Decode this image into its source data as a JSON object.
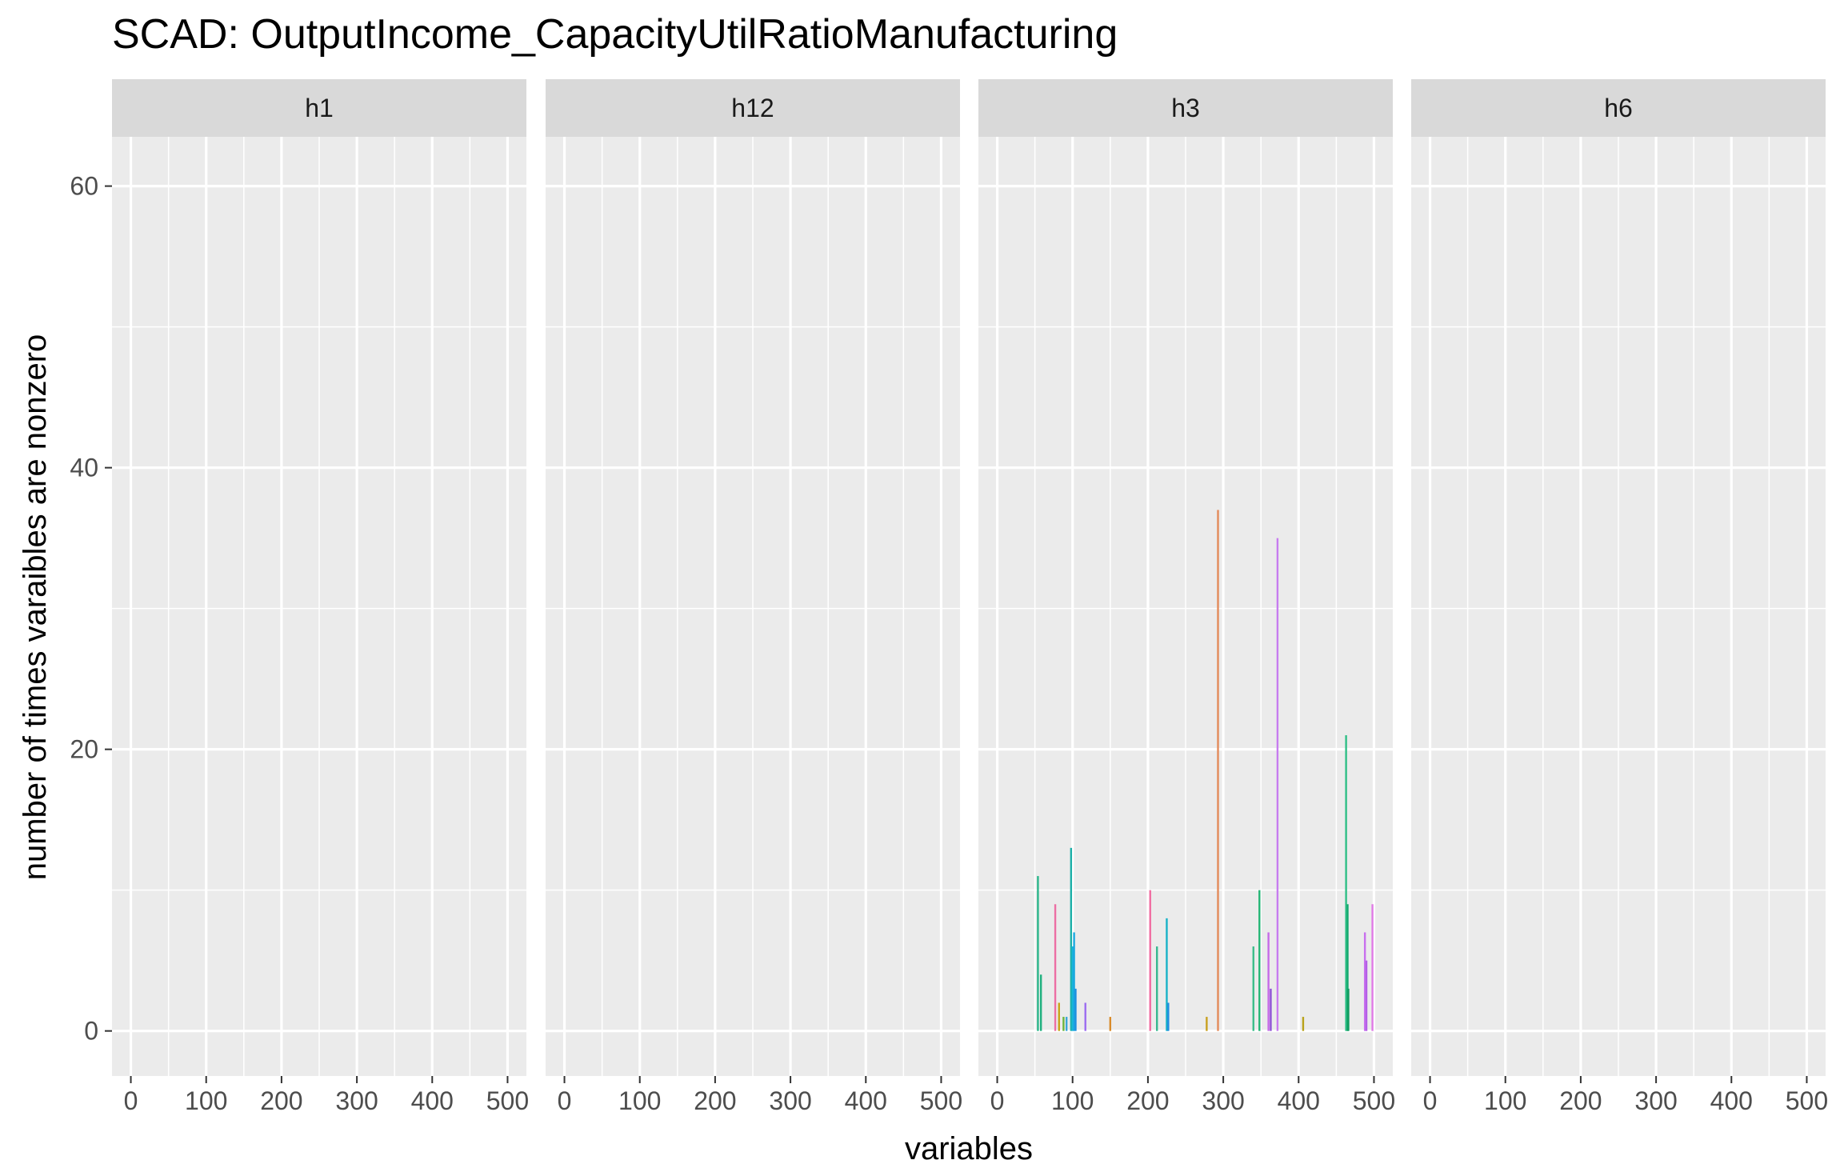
{
  "chart_data": {
    "type": "bar",
    "title": "SCAD: OutputIncome_CapacityUtilRatioManufacturing",
    "xlabel": "variables",
    "ylabel": "number of times varaibles are nonzero",
    "xlim": [
      -25,
      525
    ],
    "ylim": [
      -3.2,
      63.5
    ],
    "x_ticks": [
      0,
      100,
      200,
      300,
      400,
      500
    ],
    "y_ticks": [
      0,
      20,
      40,
      60
    ],
    "grid": true,
    "legend": "none",
    "colors": {
      "panel_bg": "#ebebeb",
      "strip_bg": "#d9d9d9",
      "grid": "#ffffff",
      "tick": "#333333"
    },
    "facets": [
      {
        "name": "h1",
        "bars": []
      },
      {
        "name": "h12",
        "bars": []
      },
      {
        "name": "h3",
        "bars": [
          {
            "x": 54,
            "y": 11,
            "color": "#2ab68a"
          },
          {
            "x": 58,
            "y": 4,
            "color": "#1fb07f"
          },
          {
            "x": 77,
            "y": 9,
            "color": "#ec6fa4"
          },
          {
            "x": 82,
            "y": 2,
            "color": "#c9a318"
          },
          {
            "x": 88,
            "y": 1,
            "color": "#6bb33a"
          },
          {
            "x": 92,
            "y": 1,
            "color": "#3aa6d8"
          },
          {
            "x": 98,
            "y": 13,
            "color": "#1bb0a8"
          },
          {
            "x": 100,
            "y": 6,
            "color": "#19b5d8"
          },
          {
            "x": 102,
            "y": 7,
            "color": "#1aa8e0"
          },
          {
            "x": 104,
            "y": 3,
            "color": "#1f8fe0"
          },
          {
            "x": 117,
            "y": 2,
            "color": "#9c6cf0"
          },
          {
            "x": 150,
            "y": 1,
            "color": "#d98b2a"
          },
          {
            "x": 203,
            "y": 10,
            "color": "#f16ba0"
          },
          {
            "x": 212,
            "y": 6,
            "color": "#36b88f"
          },
          {
            "x": 225,
            "y": 8,
            "color": "#18b2c8"
          },
          {
            "x": 227,
            "y": 2,
            "color": "#1f8ee0"
          },
          {
            "x": 278,
            "y": 1,
            "color": "#c8a020"
          },
          {
            "x": 293,
            "y": 37,
            "color": "#e38a5a"
          },
          {
            "x": 340,
            "y": 6,
            "color": "#3bbd8a"
          },
          {
            "x": 348,
            "y": 10,
            "color": "#22b574"
          },
          {
            "x": 360,
            "y": 7,
            "color": "#c66be8"
          },
          {
            "x": 363,
            "y": 3,
            "color": "#8e4fd6"
          },
          {
            "x": 372,
            "y": 35,
            "color": "#c77cf0"
          },
          {
            "x": 406,
            "y": 1,
            "color": "#b9a21a"
          },
          {
            "x": 463,
            "y": 21,
            "color": "#2fbf86"
          },
          {
            "x": 465,
            "y": 9,
            "color": "#14a96f"
          },
          {
            "x": 466,
            "y": 3,
            "color": "#0f9a5f"
          },
          {
            "x": 488,
            "y": 7,
            "color": "#c870ee"
          },
          {
            "x": 490,
            "y": 5,
            "color": "#b35fe6"
          },
          {
            "x": 498,
            "y": 9,
            "color": "#e07ae6"
          }
        ]
      },
      {
        "name": "h6",
        "bars": []
      }
    ]
  }
}
